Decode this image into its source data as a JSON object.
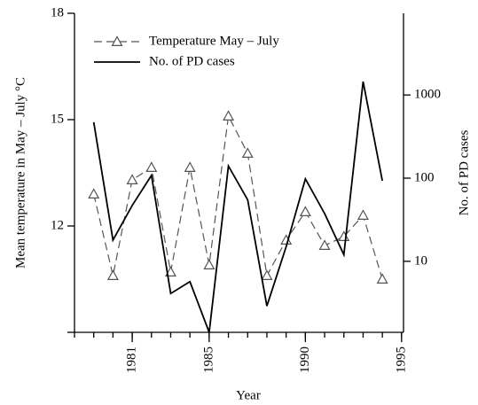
{
  "chart_data": {
    "type": "line",
    "x": [
      1979,
      1980,
      1981,
      1982,
      1983,
      1984,
      1985,
      1986,
      1987,
      1988,
      1989,
      1990,
      1991,
      1992,
      1993,
      1994
    ],
    "series": [
      {
        "name": "Temperature May – July",
        "color": "#555555",
        "dash": true,
        "marker": "triangle",
        "values": [
          12.9,
          10.6,
          13.3,
          13.65,
          10.7,
          13.65,
          10.9,
          15.1,
          14.05,
          10.6,
          11.6,
          12.4,
          11.45,
          11.7,
          12.3,
          10.5
        ]
      },
      {
        "name": "No. of PD cases",
        "color": "#000000",
        "axis": "y2",
        "values": [
          470,
          18,
          47,
          108,
          4.1,
          5.7,
          1.4,
          140,
          55,
          2.9,
          15,
          98,
          37.5,
          12,
          1450,
          93
        ]
      }
    ],
    "xlabel": "Year",
    "ylabel": "Mean temperature in May – July °C",
    "y2label": "No. of PD cases",
    "xlim": [
      1978,
      1995.1
    ],
    "xticks": [
      1981,
      1985,
      1990,
      1995
    ],
    "xminor": 1,
    "ylim": [
      9,
      18
    ],
    "yticks": [
      12,
      15,
      18
    ],
    "y2lim": [
      1.4,
      9600
    ],
    "y2ticks": [
      10,
      100,
      1000
    ],
    "y2scale": "log",
    "grid": false,
    "legend": "upper left"
  }
}
